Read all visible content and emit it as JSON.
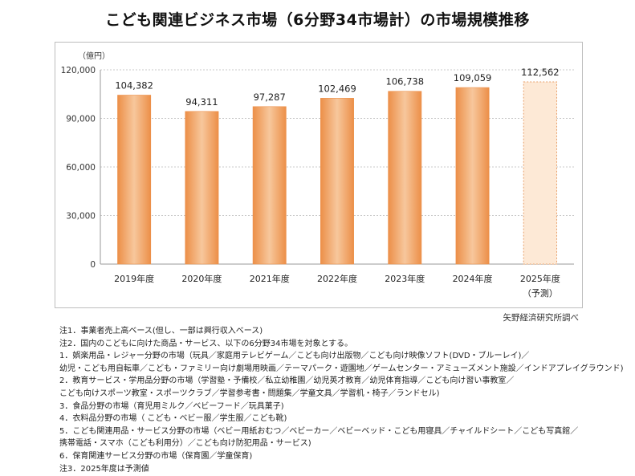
{
  "title": "こども関連ビジネス市場（6分野34市場計）の市場規模推移",
  "credit": "矢野経済研究所調べ",
  "notes": [
    "注1．事業者売上高ベース(但し、一部は興行収入ベース)",
    "注2．国内のこどもに向けた商品・サービス、以下の6分野34市場を対象とする。",
    "1．娯楽用品・レジャー分野の市場（玩具／家庭用テレビゲーム／こども向け出版物／こども向け映像ソフト(DVD・ブルーレイ)／",
    "幼児・こども用自転車／こども・ファミリー向け劇場用映画／テーマパーク・遊園地／ゲームセンター・アミューズメント施設／インドアプレイグラウンド)",
    "2．教育サービス・学用品分野の市場（学習塾・予備校／私立幼稚園／幼児英才教育／幼児体育指導／こども向け習い事教室／",
    "こども向けスポーツ教室・スポーツクラブ／学習参考書・問題集／学童文具／学習机・椅子／ランドセル)",
    "3．食品分野の市場（育児用ミルク／ベビーフード／玩具菓子)",
    "4．衣料品分野の市場（ こども・ベビー服／学生服／こども靴)",
    "5．こども関連用品・サービス分野の市場（ベビー用紙おむつ／ベビーカー／ベビーベッド・こども用寝具／チャイルドシート／こども写真館／",
    "携帯電話・スマホ（こども利用分）／こども向け防犯用品・サービス)",
    "6．保育関連サービス分野の市場（保育園／学童保育)",
    "注3．2025年度は予測値"
  ],
  "chart_data": {
    "type": "bar",
    "unit": "（億円）",
    "categories": [
      "2019年度",
      "2020年度",
      "2021年度",
      "2022年度",
      "2023年度",
      "2024年度",
      "2025年度"
    ],
    "category_sublabels": [
      "",
      "",
      "",
      "",
      "",
      "",
      "（予測）"
    ],
    "values": [
      104382,
      94311,
      97287,
      102469,
      106738,
      109059,
      112562
    ],
    "value_labels": [
      "104,382",
      "94,311",
      "97,287",
      "102,469",
      "106,738",
      "109,059",
      "112,562"
    ],
    "forecast": [
      false,
      false,
      false,
      false,
      false,
      false,
      true
    ],
    "yticks": [
      0,
      30000,
      60000,
      90000,
      120000
    ],
    "ytick_labels": [
      "0",
      "30,000",
      "60,000",
      "90,000",
      "120,000"
    ],
    "ylim": [
      0,
      120000
    ],
    "grid": true,
    "colors": {
      "bar_top": "#f7c79c",
      "bar_mid": "#f3a365",
      "bar_edge": "#ec8f48",
      "forecast_fill": "#fde9d6",
      "forecast_stroke": "#e8a06a",
      "grid": "#c8c8c8"
    }
  }
}
